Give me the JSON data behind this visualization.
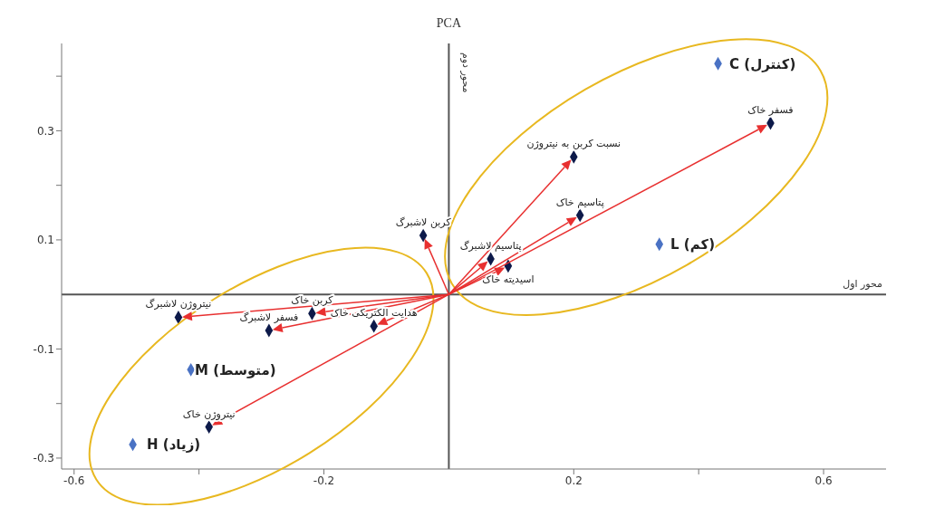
{
  "chart_data": {
    "type": "scatter",
    "title": "PCA",
    "xlabel": "محور اول",
    "ylabel": "محور دوم",
    "marker": "diamond",
    "xlim": [
      -0.62,
      0.7
    ],
    "ylim": [
      -0.32,
      0.46
    ],
    "xticks": [
      -0.6,
      {
        "value": -0.4,
        "label": null
      },
      -0.2,
      {
        "value": 0.2,
        "label": "0.2"
      },
      {
        "value": 0.4,
        "label": null
      },
      0.6
    ],
    "yticks": [
      -0.3,
      {
        "value": -0.2,
        "label": null
      },
      -0.1,
      0.1,
      {
        "value": 0.2,
        "label": null
      },
      0.3,
      {
        "value": 0.4,
        "label": null
      }
    ],
    "series": [
      {
        "color": "#0d1a4a",
        "x": [
          0.515,
          0.2,
          0.21,
          0.067,
          0.095,
          -0.041,
          -0.433,
          -0.219,
          -0.288,
          -0.12,
          -0.384
        ],
        "values": [
          0.314,
          0.252,
          0.145,
          0.065,
          0.052,
          0.108,
          -0.042,
          -0.035,
          -0.066,
          -0.058,
          -0.243
        ],
        "value_labels": [
          "فسفر خاک",
          "نسبت کربن به نیتروژن",
          "پتاسیم خاک",
          "پتاسیم لاشبرگ",
          "اسیدیته خاک",
          "کربن لاشبرگ",
          "نیتروژن لاشبرگ",
          "کربن خاک",
          "فسفر لاشبرگ",
          "هدایت الکتریکی خاک",
          "نیتروژن خاک"
        ]
      },
      {
        "color": "#4a72c4",
        "x": [
          0.431,
          0.337,
          -0.413,
          -0.506
        ],
        "values": [
          0.423,
          0.092,
          -0.138,
          -0.275
        ],
        "value_labels": [
          "C (کنترل)",
          "L (کم)",
          "M (متوسط)",
          "H (زیاد)"
        ]
      }
    ]
  }
}
